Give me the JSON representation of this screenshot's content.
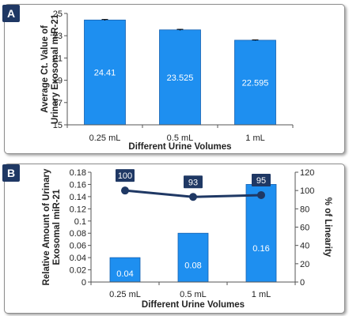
{
  "panels": [
    {
      "label": "A"
    },
    {
      "label": "B"
    }
  ],
  "colors": {
    "bar_fill": "#1e8ff0",
    "bar_stroke": "#1560b0",
    "line": "#1f3864",
    "badge_bg": "#1f3864",
    "text": "#222222"
  },
  "chart_data": [
    {
      "type": "bar",
      "title": "",
      "categories": [
        "0.25 mL",
        "0.5 mL",
        "1 mL"
      ],
      "values": [
        24.41,
        23.525,
        22.595
      ],
      "data_labels": [
        "24.41",
        "23.525",
        "22.595"
      ],
      "errors": [
        0.05,
        0.05,
        0.03
      ],
      "xlabel": "Different Urine Volumes",
      "ylabel": [
        "Average Ct. Value of",
        "Urinary Exosomal miR-21"
      ],
      "ylim": [
        15,
        25
      ],
      "yticks": [
        "15",
        "17",
        "19",
        "21",
        "23",
        "25"
      ],
      "grid": false
    },
    {
      "type": "bar",
      "title": "",
      "categories": [
        "0.25 mL",
        "0.5 mL",
        "1 mL"
      ],
      "values": [
        0.04,
        0.08,
        0.16
      ],
      "data_labels": [
        "0.04",
        "0.08",
        "0.16"
      ],
      "xlabel": "Different Urine Volumes",
      "ylabel": [
        "Relative Amount of Urinary",
        "Exosomal miR-21"
      ],
      "ylim": [
        0,
        0.18
      ],
      "yticks": [
        "0",
        "0.02",
        "0.04",
        "0.06",
        "0.08",
        "0.1",
        "0.12",
        "0.14",
        "0.16",
        "0.18"
      ],
      "secondary_axis": {
        "type": "line",
        "ylabel": "% of Linearity",
        "ylim": [
          0,
          120
        ],
        "yticks": [
          "0",
          "20",
          "40",
          "60",
          "80",
          "100",
          "120"
        ],
        "values": [
          100,
          93,
          95
        ],
        "data_labels": [
          "100",
          "93",
          "95"
        ]
      },
      "grid": false
    }
  ]
}
